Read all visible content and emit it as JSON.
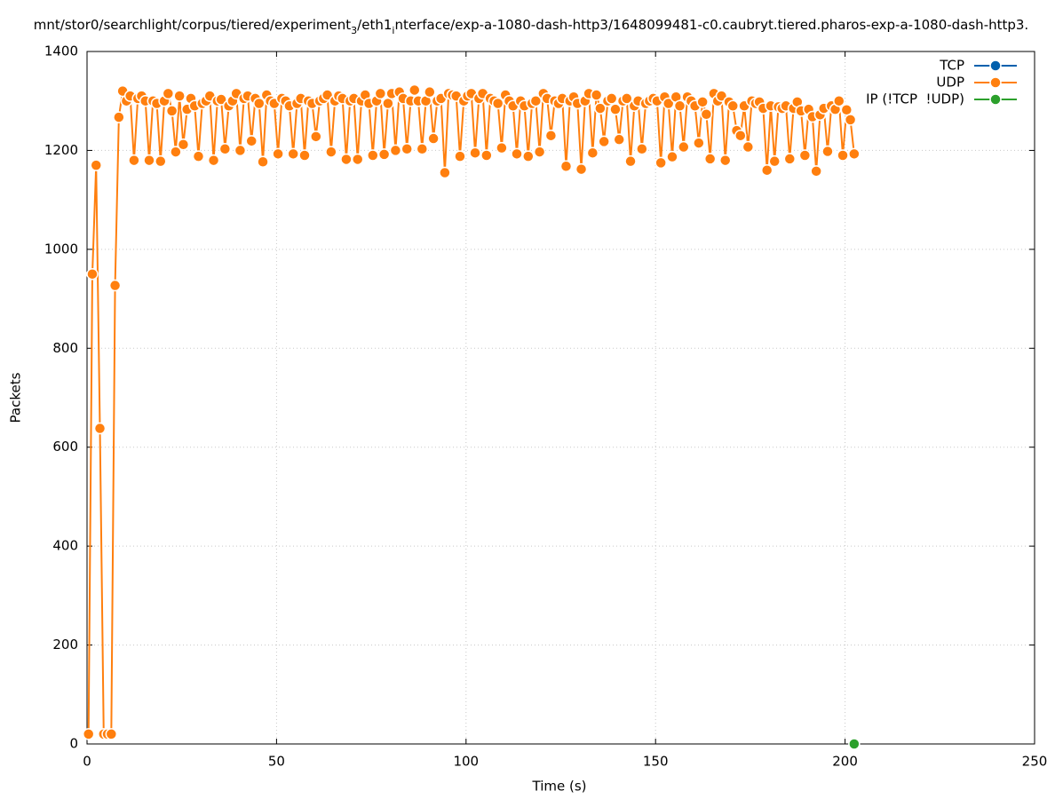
{
  "chart_data": {
    "type": "line",
    "title": [
      {
        "text": "mnt/stor0/searchlight/corpus/tiered/experiment",
        "sub": false
      },
      {
        "text": "3",
        "sub": true
      },
      {
        "text": "/eth1",
        "sub": false
      },
      {
        "text": "i",
        "sub": true
      },
      {
        "text": "nterface/exp-a-1080-dash-http3/1648099481-c0.caubryt.tiered.pharos-exp-a-1080-dash-http3.",
        "sub": false
      }
    ],
    "x_label": "Time (s)",
    "y_label": "Packets",
    "xlim": [
      0,
      250
    ],
    "xticks": [
      0,
      50,
      100,
      150,
      200,
      250
    ],
    "ylim": [
      0,
      1400
    ],
    "yticks": [
      0,
      200,
      400,
      600,
      800,
      1000,
      1200,
      1400
    ],
    "grid": true,
    "legend": "top-right",
    "series": [
      {
        "name": "TCP",
        "color": "#0060ad",
        "x": [],
        "values": []
      },
      {
        "name": "UDP",
        "color": "#ff7f0e",
        "x": [
          0.4,
          1.4,
          2.4,
          3.4,
          4.4,
          5.4,
          6.4,
          7.4,
          8.4,
          9.4,
          10.4,
          11.4,
          12.4,
          13.4,
          14.4,
          15.4,
          16.4,
          17.4,
          18.4,
          19.4,
          20.4,
          21.4,
          22.4,
          23.4,
          24.4,
          25.4,
          26.4,
          27.4,
          28.4,
          29.4,
          30.4,
          31.4,
          32.4,
          33.4,
          34.4,
          35.4,
          36.4,
          37.4,
          38.4,
          39.4,
          40.4,
          41.4,
          42.4,
          43.4,
          44.4,
          45.4,
          46.4,
          47.4,
          48.4,
          49.4,
          50.4,
          51.4,
          52.4,
          53.4,
          54.4,
          55.4,
          56.4,
          57.4,
          58.4,
          59.4,
          60.4,
          61.4,
          62.4,
          63.4,
          64.4,
          65.4,
          66.4,
          67.4,
          68.4,
          69.4,
          70.4,
          71.4,
          72.4,
          73.4,
          74.4,
          75.4,
          76.4,
          77.4,
          78.4,
          79.4,
          80.4,
          81.4,
          82.4,
          83.4,
          84.4,
          85.4,
          86.4,
          87.4,
          88.4,
          89.4,
          90.4,
          91.4,
          92.4,
          93.4,
          94.4,
          95.4,
          96.4,
          97.4,
          98.4,
          99.4,
          100.4,
          101.4,
          102.4,
          103.4,
          104.4,
          105.4,
          106.4,
          107.4,
          108.4,
          109.4,
          110.4,
          111.4,
          112.4,
          113.4,
          114.4,
          115.4,
          116.4,
          117.4,
          118.4,
          119.4,
          120.4,
          121.4,
          122.4,
          123.4,
          124.4,
          125.4,
          126.4,
          127.4,
          128.4,
          129.4,
          130.4,
          131.4,
          132.4,
          133.4,
          134.4,
          135.4,
          136.4,
          137.4,
          138.4,
          139.4,
          140.4,
          141.4,
          142.4,
          143.4,
          144.4,
          145.4,
          146.4,
          147.4,
          148.4,
          149.4,
          150.4,
          151.4,
          152.4,
          153.4,
          154.4,
          155.4,
          156.4,
          157.4,
          158.4,
          159.4,
          160.4,
          161.4,
          162.4,
          163.4,
          164.4,
          165.4,
          166.4,
          167.4,
          168.4,
          169.4,
          170.4,
          171.4,
          172.4,
          173.4,
          174.4,
          175.4,
          176.4,
          177.4,
          178.4,
          179.4,
          180.4,
          181.4,
          182.4,
          183.4,
          184.4,
          185.4,
          186.4,
          187.4,
          188.4,
          189.4,
          190.4,
          191.4,
          192.4,
          193.4,
          194.4,
          195.4,
          196.4,
          197.4,
          198.4,
          199.4,
          200.4,
          201.4,
          202.4
        ],
        "values": [
          20,
          950,
          1170,
          638,
          20,
          20,
          20,
          927,
          1267,
          1320,
          1300,
          1310,
          1180,
          1305,
          1310,
          1300,
          1180,
          1300,
          1295,
          1178,
          1300,
          1315,
          1280,
          1197,
          1310,
          1212,
          1283,
          1305,
          1290,
          1188,
          1295,
          1300,
          1310,
          1180,
          1300,
          1303,
          1203,
          1290,
          1300,
          1315,
          1200,
          1305,
          1310,
          1219,
          1305,
          1295,
          1177,
          1312,
          1300,
          1295,
          1193,
          1305,
          1300,
          1290,
          1193,
          1295,
          1305,
          1190,
          1300,
          1295,
          1228,
          1300,
          1305,
          1312,
          1197,
          1300,
          1310,
          1305,
          1182,
          1300,
          1305,
          1182,
          1300,
          1312,
          1295,
          1190,
          1300,
          1315,
          1192,
          1295,
          1315,
          1200,
          1318,
          1305,
          1203,
          1300,
          1322,
          1300,
          1203,
          1300,
          1318,
          1224,
          1300,
          1305,
          1155,
          1315,
          1312,
          1310,
          1188,
          1300,
          1310,
          1315,
          1195,
          1305,
          1315,
          1190,
          1305,
          1300,
          1295,
          1205,
          1312,
          1300,
          1290,
          1193,
          1300,
          1290,
          1188,
          1295,
          1300,
          1197,
          1315,
          1305,
          1230,
          1300,
          1295,
          1305,
          1168,
          1300,
          1308,
          1295,
          1162,
          1300,
          1315,
          1195,
          1312,
          1285,
          1218,
          1300,
          1305,
          1283,
          1222,
          1300,
          1305,
          1178,
          1290,
          1300,
          1203,
          1295,
          1300,
          1305,
          1300,
          1175,
          1308,
          1295,
          1187,
          1308,
          1290,
          1207,
          1308,
          1300,
          1290,
          1215,
          1298,
          1273,
          1183,
          1315,
          1300,
          1310,
          1180,
          1298,
          1290,
          1240,
          1230,
          1290,
          1207,
          1300,
          1295,
          1298,
          1285,
          1160,
          1290,
          1178,
          1288,
          1285,
          1290,
          1183,
          1285,
          1298,
          1280,
          1190,
          1283,
          1268,
          1158,
          1272,
          1285,
          1198,
          1290,
          1283,
          1300,
          1190,
          1282,
          1262,
          1193
        ]
      },
      {
        "name": "IP (!TCP  !UDP)",
        "color": "#2ca02c",
        "x": [
          202.4
        ],
        "values": [
          0
        ]
      }
    ]
  }
}
